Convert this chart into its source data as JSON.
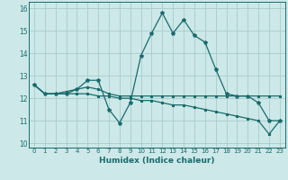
{
  "xlabel": "Humidex (Indice chaleur)",
  "ylabel": "",
  "xlim": [
    -0.5,
    23.5
  ],
  "ylim": [
    9.8,
    16.3
  ],
  "yticks": [
    10,
    11,
    12,
    13,
    14,
    15,
    16
  ],
  "xticks": [
    0,
    1,
    2,
    3,
    4,
    5,
    6,
    7,
    8,
    9,
    10,
    11,
    12,
    13,
    14,
    15,
    16,
    17,
    18,
    19,
    20,
    21,
    22,
    23
  ],
  "bg_color": "#cce8e8",
  "grid_color": "#aacccc",
  "line_color": "#1a6b6b",
  "line1": [
    12.6,
    12.2,
    12.2,
    12.2,
    12.4,
    12.8,
    12.8,
    11.5,
    10.9,
    11.8,
    13.9,
    14.9,
    15.8,
    14.9,
    15.5,
    14.8,
    14.5,
    13.3,
    12.2,
    12.1,
    12.1,
    11.8,
    11.0,
    11.0
  ],
  "line2": [
    12.6,
    12.2,
    12.2,
    12.3,
    12.4,
    12.5,
    12.4,
    12.2,
    12.1,
    12.1,
    12.1,
    12.1,
    12.1,
    12.1,
    12.1,
    12.1,
    12.1,
    12.1,
    12.1,
    12.1,
    12.1,
    12.1,
    12.1,
    12.1
  ],
  "line3": [
    12.6,
    12.2,
    12.2,
    12.2,
    12.2,
    12.2,
    12.1,
    12.1,
    12.0,
    12.0,
    11.9,
    11.9,
    11.8,
    11.7,
    11.7,
    11.6,
    11.5,
    11.4,
    11.3,
    11.2,
    11.1,
    11.0,
    10.4,
    11.0
  ]
}
